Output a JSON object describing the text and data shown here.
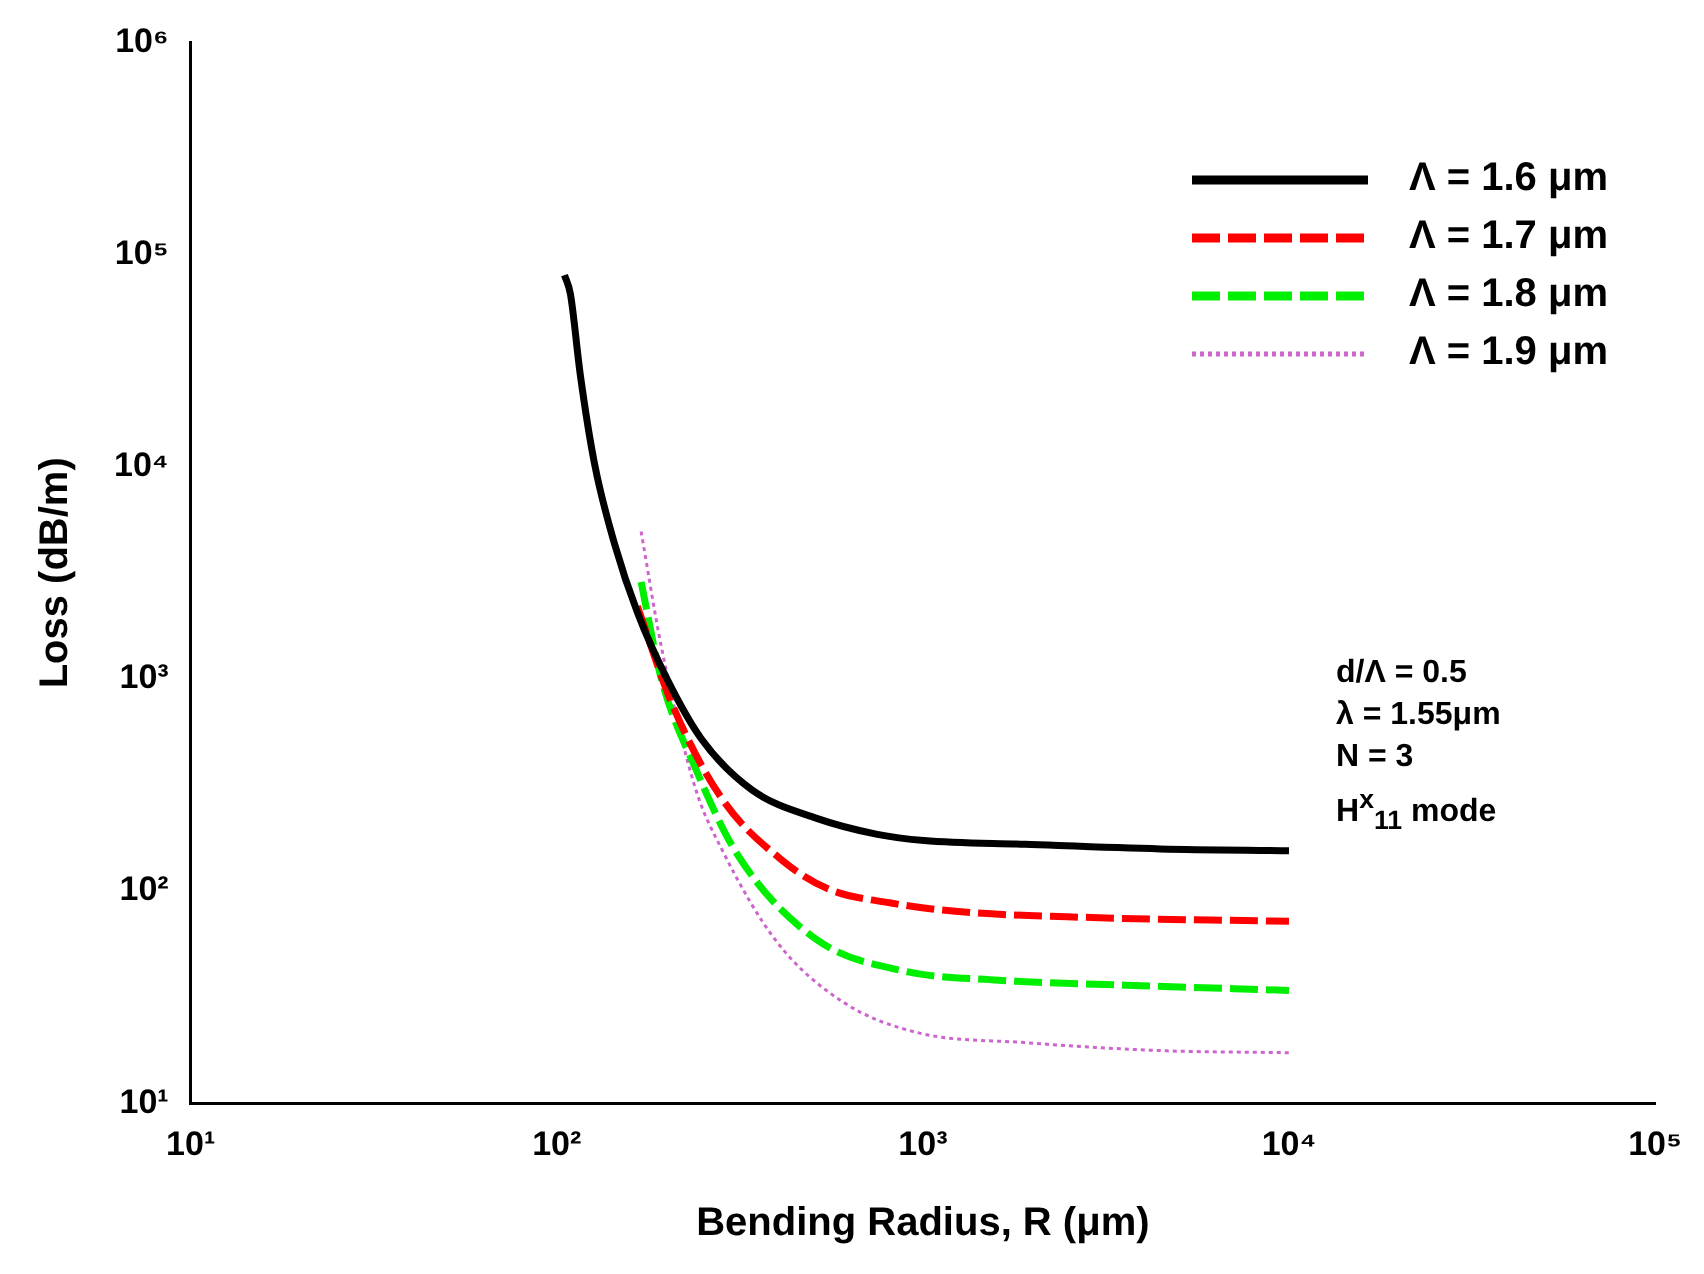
{
  "chart_data": {
    "type": "line",
    "xlabel": "Bending Radius, R (μm)",
    "ylabel": "Loss (dB/m)",
    "log": "xy",
    "grid": false,
    "legend": "top right",
    "marker": "none",
    "xlim": [
      10,
      100000
    ],
    "ylim": [
      10,
      1000000
    ],
    "xticks": [
      {
        "value": 10,
        "label": "10¹"
      },
      {
        "value": 100,
        "label": "10²"
      },
      {
        "value": 1000,
        "label": "10³"
      },
      {
        "value": 10000,
        "label": "10⁴"
      },
      {
        "value": 100000,
        "label": "10⁵"
      }
    ],
    "yticks": [
      {
        "value": 10,
        "label": "10¹"
      },
      {
        "value": 100,
        "label": "10²"
      },
      {
        "value": 1000,
        "label": "10³"
      },
      {
        "value": 10000,
        "label": "10⁴"
      },
      {
        "value": 100000,
        "label": "10⁵"
      },
      {
        "value": 1000000,
        "label": "10⁶"
      }
    ],
    "annotations": [
      "d/Λ = 0.5",
      "λ = 1.55μm",
      "N = 3",
      "H$^{x}$$_{11}$ mode"
    ],
    "series": [
      {
        "name": "Λ = 1.6 μm",
        "color": "#000000",
        "line_style": "solid",
        "x": [
          105,
          109,
          116,
          127,
          144,
          166,
          200,
          249,
          342,
          513,
          751,
          1007,
          1900,
          4450,
          10000
        ],
        "values": [
          80000,
          65000,
          27000,
          10200,
          4300,
          2060,
          1000,
          518,
          299,
          220,
          185,
          173,
          166,
          158,
          155
        ]
      },
      {
        "name": "Λ = 1.7 μm",
        "color": "#ff0000",
        "line_style": "dashed",
        "x": [
          166,
          206,
          282,
          414,
          554,
          811,
          1250,
          2890,
          10000
        ],
        "values": [
          2200,
          769,
          274,
          139,
          102,
          88,
          80,
          75,
          72
        ]
      },
      {
        "name": "Λ = 1.8 μm",
        "color": "#00ee00",
        "line_style": "dashed",
        "x": [
          170,
          193,
          239,
          312,
          513,
          887,
          1610,
          3580,
          10000
        ],
        "values": [
          2860,
          1000,
          381,
          148,
          59,
          42,
          38,
          36,
          34
        ]
      },
      {
        "name": "Λ = 1.9 μm",
        "color": "#cc66cc",
        "line_style": "dotted",
        "x": [
          170,
          193,
          239,
          282,
          398,
          605,
          968,
          1900,
          4450,
          10000
        ],
        "values": [
          4950,
          1420,
          306,
          158,
          58,
          30,
          21.5,
          19.3,
          17.7,
          17.3
        ]
      }
    ]
  }
}
